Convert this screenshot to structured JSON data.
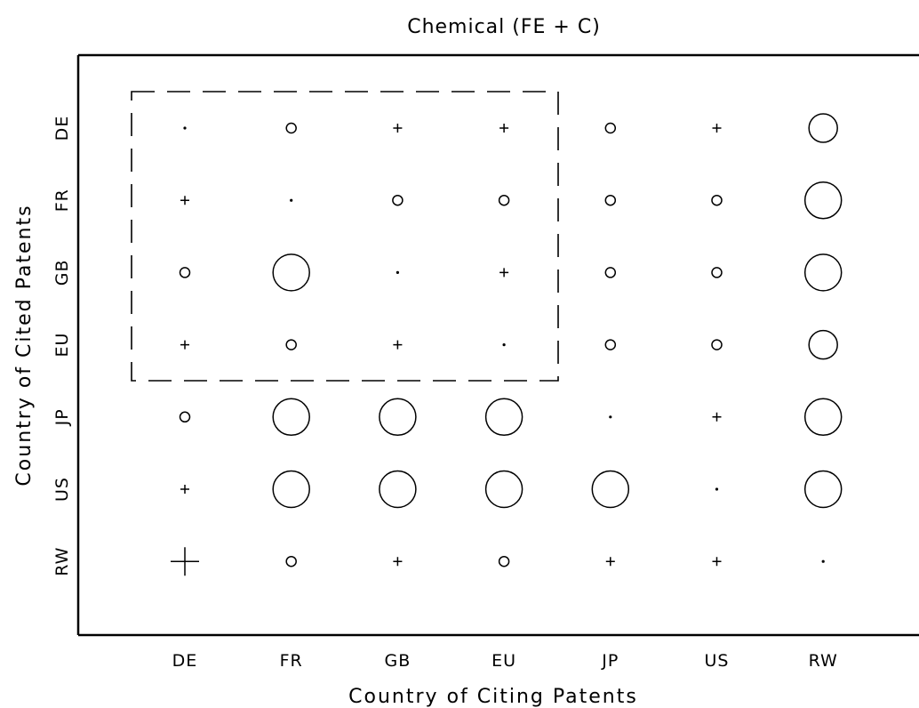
{
  "chart_data": {
    "type": "scatter",
    "title": "Chemical (FE + C)",
    "xlabel": "Country of Citing Patents",
    "ylabel": "Country of Cited Patents",
    "x_categories": [
      "DE",
      "FR",
      "GB",
      "EU",
      "JP",
      "US",
      "RW"
    ],
    "y_categories": [
      "DE",
      "FR",
      "GB",
      "EU",
      "JP",
      "US",
      "RW"
    ],
    "legend": "none",
    "grid": false,
    "highlight_region": {
      "style": "dashed",
      "x_categories": [
        "DE",
        "FR",
        "GB",
        "EU"
      ],
      "y_categories": [
        "DE",
        "FR",
        "GB",
        "EU"
      ]
    },
    "markers": [
      {
        "x": "DE",
        "y": "DE",
        "shape": "dot",
        "size": 1
      },
      {
        "x": "FR",
        "y": "DE",
        "shape": "circle",
        "size": 1
      },
      {
        "x": "GB",
        "y": "DE",
        "shape": "plus",
        "size": 1
      },
      {
        "x": "EU",
        "y": "DE",
        "shape": "plus",
        "size": 1
      },
      {
        "x": "JP",
        "y": "DE",
        "shape": "circle",
        "size": 1
      },
      {
        "x": "US",
        "y": "DE",
        "shape": "plus",
        "size": 1
      },
      {
        "x": "RW",
        "y": "DE",
        "shape": "circle",
        "size": 3
      },
      {
        "x": "DE",
        "y": "FR",
        "shape": "plus",
        "size": 1
      },
      {
        "x": "FR",
        "y": "FR",
        "shape": "dot",
        "size": 1
      },
      {
        "x": "GB",
        "y": "FR",
        "shape": "circle",
        "size": 1
      },
      {
        "x": "EU",
        "y": "FR",
        "shape": "circle",
        "size": 1
      },
      {
        "x": "JP",
        "y": "FR",
        "shape": "circle",
        "size": 1
      },
      {
        "x": "US",
        "y": "FR",
        "shape": "circle",
        "size": 1
      },
      {
        "x": "RW",
        "y": "FR",
        "shape": "circle",
        "size": 4
      },
      {
        "x": "DE",
        "y": "GB",
        "shape": "circle",
        "size": 1
      },
      {
        "x": "FR",
        "y": "GB",
        "shape": "circle",
        "size": 4
      },
      {
        "x": "GB",
        "y": "GB",
        "shape": "dot",
        "size": 1
      },
      {
        "x": "EU",
        "y": "GB",
        "shape": "plus",
        "size": 1
      },
      {
        "x": "JP",
        "y": "GB",
        "shape": "circle",
        "size": 1
      },
      {
        "x": "US",
        "y": "GB",
        "shape": "circle",
        "size": 1
      },
      {
        "x": "RW",
        "y": "GB",
        "shape": "circle",
        "size": 4
      },
      {
        "x": "DE",
        "y": "EU",
        "shape": "plus",
        "size": 1
      },
      {
        "x": "FR",
        "y": "EU",
        "shape": "circle",
        "size": 1
      },
      {
        "x": "GB",
        "y": "EU",
        "shape": "plus",
        "size": 1
      },
      {
        "x": "EU",
        "y": "EU",
        "shape": "dot",
        "size": 1
      },
      {
        "x": "JP",
        "y": "EU",
        "shape": "circle",
        "size": 1
      },
      {
        "x": "US",
        "y": "EU",
        "shape": "circle",
        "size": 1
      },
      {
        "x": "RW",
        "y": "EU",
        "shape": "circle",
        "size": 3
      },
      {
        "x": "DE",
        "y": "JP",
        "shape": "circle",
        "size": 1
      },
      {
        "x": "FR",
        "y": "JP",
        "shape": "circle",
        "size": 4
      },
      {
        "x": "GB",
        "y": "JP",
        "shape": "circle",
        "size": 4
      },
      {
        "x": "EU",
        "y": "JP",
        "shape": "circle",
        "size": 4
      },
      {
        "x": "JP",
        "y": "JP",
        "shape": "dot",
        "size": 1
      },
      {
        "x": "US",
        "y": "JP",
        "shape": "plus",
        "size": 1
      },
      {
        "x": "RW",
        "y": "JP",
        "shape": "circle",
        "size": 4
      },
      {
        "x": "DE",
        "y": "US",
        "shape": "plus",
        "size": 1
      },
      {
        "x": "FR",
        "y": "US",
        "shape": "circle",
        "size": 4
      },
      {
        "x": "GB",
        "y": "US",
        "shape": "circle",
        "size": 4
      },
      {
        "x": "EU",
        "y": "US",
        "shape": "circle",
        "size": 4
      },
      {
        "x": "JP",
        "y": "US",
        "shape": "circle",
        "size": 4
      },
      {
        "x": "US",
        "y": "US",
        "shape": "dot",
        "size": 1
      },
      {
        "x": "RW",
        "y": "US",
        "shape": "circle",
        "size": 4
      },
      {
        "x": "DE",
        "y": "RW",
        "shape": "plus",
        "size": 3
      },
      {
        "x": "FR",
        "y": "RW",
        "shape": "circle",
        "size": 1
      },
      {
        "x": "GB",
        "y": "RW",
        "shape": "plus",
        "size": 1
      },
      {
        "x": "EU",
        "y": "RW",
        "shape": "circle",
        "size": 1
      },
      {
        "x": "JP",
        "y": "RW",
        "shape": "plus",
        "size": 1
      },
      {
        "x": "US",
        "y": "RW",
        "shape": "plus",
        "size": 1
      },
      {
        "x": "RW",
        "y": "RW",
        "shape": "dot",
        "size": 1
      }
    ]
  }
}
